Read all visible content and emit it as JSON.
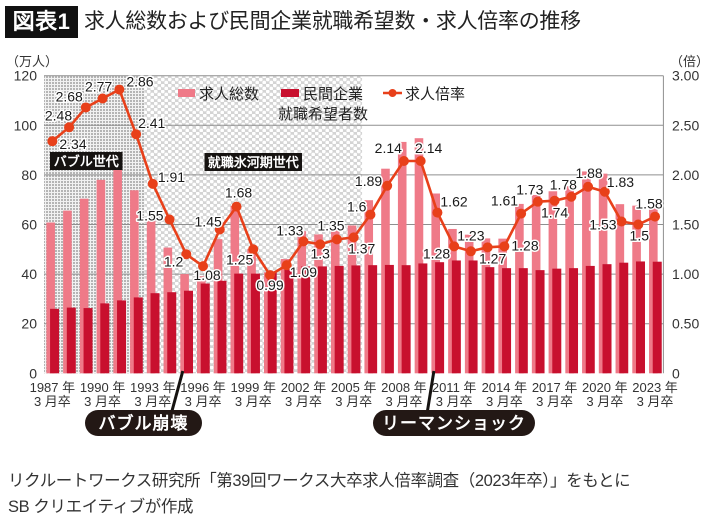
{
  "header": {
    "badge": "図表1"
  },
  "chart_data": {
    "type": "bar",
    "title": "求人総数および民間企業就職希望数・求人倍率の推移",
    "xlabel": "",
    "categories": [
      1987,
      1988,
      1989,
      1990,
      1991,
      1992,
      1993,
      1994,
      1995,
      1996,
      1997,
      1998,
      1999,
      2000,
      2001,
      2002,
      2003,
      2004,
      2005,
      2006,
      2007,
      2008,
      2009,
      2010,
      2011,
      2012,
      2013,
      2014,
      2015,
      2016,
      2017,
      2018,
      2019,
      2020,
      2021,
      2022,
      2023
    ],
    "series": [
      {
        "name": "求人総数",
        "type": "bar",
        "axis": "left",
        "color": "#ef7a88",
        "values": [
          60.8,
          65.6,
          70.4,
          78.0,
          84.0,
          73.8,
          61.7,
          50.7,
          40.0,
          39.1,
          54.1,
          67.5,
          50.2,
          40.7,
          46.1,
          57.3,
          56.0,
          58.4,
          59.6,
          69.8,
          82.5,
          93.3,
          94.8,
          72.5,
          58.2,
          55.9,
          54.4,
          54.3,
          68.3,
          71.9,
          73.4,
          75.5,
          81.4,
          80.5,
          68.2,
          67.6,
          67.0
        ]
      },
      {
        "name": "民間企業就職希望者数",
        "type": "bar",
        "axis": "left",
        "color": "#c8102e",
        "values": [
          26.0,
          26.5,
          26.3,
          28.2,
          29.4,
          30.6,
          32.3,
          32.7,
          33.3,
          36.2,
          37.3,
          40.2,
          40.2,
          41.1,
          42.3,
          43.1,
          43.1,
          43.3,
          43.5,
          43.6,
          43.7,
          43.6,
          44.3,
          44.8,
          45.5,
          45.5,
          42.8,
          42.4,
          42.4,
          41.6,
          42.2,
          42.4,
          43.3,
          44.0,
          44.6,
          45.1,
          45.0
        ]
      },
      {
        "name": "求人倍率",
        "type": "line",
        "axis": "right",
        "color": "#e8401a",
        "values": [
          2.34,
          2.48,
          2.68,
          2.77,
          2.86,
          2.41,
          1.91,
          1.55,
          1.2,
          1.08,
          1.45,
          1.68,
          1.25,
          0.99,
          1.09,
          1.33,
          1.3,
          1.35,
          1.37,
          1.6,
          1.89,
          2.14,
          2.14,
          1.62,
          1.28,
          1.23,
          1.27,
          1.28,
          1.61,
          1.73,
          1.74,
          1.78,
          1.88,
          1.83,
          1.53,
          1.5,
          1.58
        ],
        "data_labels": true
      }
    ],
    "y_left": {
      "label": "（万人）",
      "range": [
        0,
        120
      ],
      "ticks": [
        {
          "value": 0,
          "label": "0"
        },
        {
          "value": 20,
          "label": "20"
        },
        {
          "value": 40,
          "label": "40"
        },
        {
          "value": 60,
          "label": "60"
        },
        {
          "value": 80,
          "label": "80"
        },
        {
          "value": 100,
          "label": "100"
        },
        {
          "value": 120,
          "label": "120"
        }
      ]
    },
    "y_right": {
      "label": "（倍）",
      "range": [
        0,
        3
      ],
      "ticks": [
        {
          "value": 0,
          "label": "0"
        },
        {
          "value": 0.5,
          "label": "0.50"
        },
        {
          "value": 1.0,
          "label": "1.00"
        },
        {
          "value": 1.5,
          "label": "1.50"
        },
        {
          "value": 2.0,
          "label": "2.00"
        },
        {
          "value": 2.5,
          "label": "2.50"
        },
        {
          "value": 3.0,
          "label": "3.00"
        }
      ]
    },
    "x_tick_labels": [
      {
        "at": 1987,
        "line1": "1987 年",
        "line2": "3 月卒"
      },
      {
        "at": 1990,
        "line1": "1990 年",
        "line2": "3 月卒"
      },
      {
        "at": 1993,
        "line1": "1993 年",
        "line2": "3 月卒"
      },
      {
        "at": 1996,
        "line1": "1996 年",
        "line2": "3 月卒"
      },
      {
        "at": 1999,
        "line1": "1999 年",
        "line2": "3 月卒"
      },
      {
        "at": 2002,
        "line1": "2002 年",
        "line2": "3 月卒"
      },
      {
        "at": 2005,
        "line1": "2005 年",
        "line2": "3 月卒"
      },
      {
        "at": 2008,
        "line1": "2008 年",
        "line2": "3 月卒"
      },
      {
        "at": 2011,
        "line1": "2011 年",
        "line2": "3 月卒"
      },
      {
        "at": 2014,
        "line1": "2014 年",
        "line2": "3 月卒"
      },
      {
        "at": 2017,
        "line1": "2017 年",
        "line2": "3 月卒"
      },
      {
        "at": 2020,
        "line1": "2020 年",
        "line2": "3 月卒"
      },
      {
        "at": 2023,
        "line1": "2023 年",
        "line2": "3 月卒"
      }
    ],
    "grid": true,
    "legend_placement": "top-center",
    "legend": [
      {
        "label": "求人総数",
        "label2": "",
        "color": "#ef7a88",
        "marker": "bar"
      },
      {
        "label": "民間企業",
        "label2": "就職希望者数",
        "color": "#c8102e",
        "marker": "bar"
      },
      {
        "label": "求人倍率",
        "label2": "",
        "color": "#e8401a",
        "marker": "line-dot"
      }
    ],
    "eras": [
      {
        "label": "バブル世代",
        "from": 1987,
        "to": 1992,
        "pattern": "grid"
      },
      {
        "label": "就職氷河期世代",
        "from": 1993,
        "to": 2005,
        "pattern": "dots"
      }
    ],
    "events": [
      {
        "label": "バブル崩壊",
        "at": 1995
      },
      {
        "label": "リーマンショック",
        "at": 2010
      }
    ]
  },
  "footer": {
    "source_lines": [
      "リクルートワークス研究所「第39回ワークス大卒求人倍率調査（2023年卒）」をもとに",
      "SB クリエイティブが作成"
    ]
  }
}
